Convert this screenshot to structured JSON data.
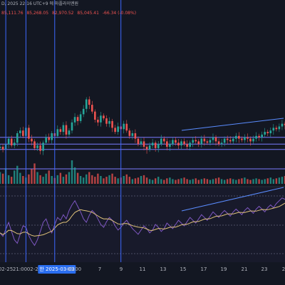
{
  "header": {
    "title_line": "D, 2025 22:16 UTC+9 에 마플라이엔원",
    "ohlc": [
      {
        "label": "",
        "value": "85,111.76"
      },
      {
        "label": "",
        "value": "85,268.05"
      },
      {
        "label": "",
        "value": "82,970.52"
      },
      {
        "label": "",
        "value": "85,045.41"
      }
    ],
    "change": "-66.34 (-0.08%)"
  },
  "time_axis": {
    "ticks": [
      {
        "label": "02-25",
        "highlight": false
      },
      {
        "label": "21:00",
        "highlight": false
      },
      {
        "label": "02-28",
        "highlight": false
      },
      {
        "label": "한 2025-03-03",
        "highlight": true
      },
      {
        "label": "05:00",
        "highlight": false
      },
      {
        "label": "7",
        "highlight": false
      },
      {
        "label": "9",
        "highlight": false
      },
      {
        "label": "11",
        "highlight": false
      },
      {
        "label": "13",
        "highlight": false
      },
      {
        "label": "15",
        "highlight": false
      },
      {
        "label": "17",
        "highlight": false
      },
      {
        "label": "19",
        "highlight": false
      },
      {
        "label": "21",
        "highlight": false
      },
      {
        "label": "23",
        "highlight": false
      },
      {
        "label": "2",
        "highlight": false
      }
    ]
  },
  "colors": {
    "background": "#131722",
    "up": "#26a69a",
    "down": "#ef5350",
    "level_lines": "#7b7bff",
    "trend_lines": "#5a8cff",
    "rsi_line": "#7e57c2",
    "rsi_ma": "#e0c27a"
  },
  "chart_data": {
    "type": "candlestick",
    "title": "",
    "xlabel": "",
    "ylabel": "",
    "price_series": [
      60,
      58,
      62,
      66,
      61,
      63,
      70,
      72,
      68,
      74,
      66,
      64,
      59,
      61,
      57,
      63,
      67,
      65,
      70,
      68,
      73,
      71,
      76,
      69,
      72,
      78,
      82,
      79,
      84,
      88,
      95,
      91,
      86,
      80,
      78,
      83,
      81,
      77,
      79,
      74,
      71,
      75,
      73,
      77,
      72,
      68,
      70,
      66,
      62,
      64,
      60,
      58,
      61,
      63,
      59,
      62,
      66,
      64,
      60,
      62,
      65,
      63,
      61,
      64,
      62,
      60,
      63,
      65,
      64,
      62,
      66,
      64,
      63,
      65,
      67,
      64,
      62,
      63,
      66,
      65,
      64,
      66,
      68,
      66,
      65,
      67,
      66,
      64,
      66,
      68,
      67,
      69,
      71,
      70,
      72,
      74,
      73,
      75,
      77,
      76
    ],
    "volume_series": [
      30,
      26,
      40,
      22,
      18,
      34,
      46,
      28,
      20,
      16,
      24,
      38,
      52,
      30,
      22,
      18,
      26,
      34,
      20,
      15,
      22,
      28,
      18,
      24,
      30,
      60,
      42,
      28,
      20,
      16,
      24,
      30,
      22,
      18,
      26,
      20,
      14,
      18,
      22,
      26,
      18,
      14,
      16,
      20,
      24,
      18,
      12,
      14,
      16,
      20,
      22,
      16,
      12,
      10,
      14,
      18,
      12,
      10,
      14,
      16,
      12,
      10,
      12,
      14,
      16,
      12,
      10,
      12,
      14,
      10,
      12,
      14,
      12,
      10,
      12,
      14,
      16,
      12,
      10,
      12,
      14,
      12,
      10,
      12,
      14,
      16,
      12,
      10,
      12,
      14,
      12,
      10,
      12,
      14,
      16,
      12,
      14,
      16,
      18,
      20
    ],
    "rsi_series": [
      40,
      35,
      45,
      55,
      42,
      30,
      25,
      38,
      50,
      48,
      36,
      28,
      22,
      30,
      42,
      55,
      60,
      48,
      40,
      52,
      62,
      58,
      66,
      60,
      72,
      80,
      86,
      78,
      70,
      60,
      55,
      65,
      72,
      68,
      60,
      52,
      48,
      56,
      62,
      58,
      50,
      44,
      48,
      54,
      58,
      52,
      46,
      42,
      38,
      44,
      50,
      46,
      40,
      44,
      52,
      48,
      42,
      46,
      54,
      50,
      46,
      52,
      58,
      54,
      50,
      56,
      62,
      58,
      54,
      60,
      66,
      62,
      58,
      64,
      70,
      66,
      62,
      68,
      72,
      68,
      64,
      70,
      74,
      70,
      66,
      72,
      76,
      72,
      68,
      74,
      78,
      74,
      70,
      76,
      80,
      76,
      82,
      86,
      90,
      88
    ],
    "horizontal_levels": [
      67,
      62,
      58
    ],
    "vertical_markers": [
      2,
      9,
      19,
      42
    ]
  }
}
